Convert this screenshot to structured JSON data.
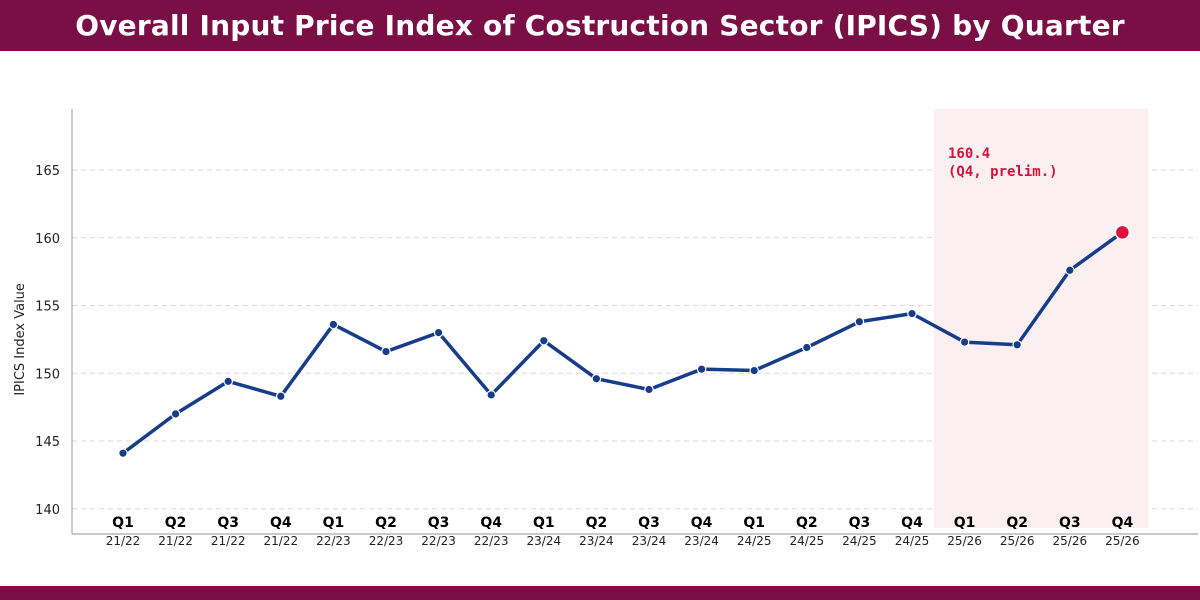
{
  "title": "Overall Input Price Index of Costruction Sector (IPICS) by Quarter",
  "colors": {
    "banner": "#7a0f45",
    "line": "#163c8a",
    "highlight_point": "#dc143c",
    "highlight_band": "#fbeff1",
    "annotation": "#d0143c"
  },
  "chart_data": {
    "type": "line",
    "title": "Overall Input Price Index of Costruction Sector (IPICS) by Quarter",
    "xlabel": "",
    "ylabel": "IPICS Index Value",
    "ylim": [
      139.5,
      169.5
    ],
    "yticks": [
      140,
      145,
      150,
      155,
      160,
      165
    ],
    "grid": "horizontal dashed",
    "categories": [
      {
        "q": "Q1",
        "y": "21/22"
      },
      {
        "q": "Q2",
        "y": "21/22"
      },
      {
        "q": "Q3",
        "y": "21/22"
      },
      {
        "q": "Q4",
        "y": "21/22"
      },
      {
        "q": "Q1",
        "y": "22/23"
      },
      {
        "q": "Q2",
        "y": "22/23"
      },
      {
        "q": "Q3",
        "y": "22/23"
      },
      {
        "q": "Q4",
        "y": "22/23"
      },
      {
        "q": "Q1",
        "y": "23/24"
      },
      {
        "q": "Q2",
        "y": "23/24"
      },
      {
        "q": "Q3",
        "y": "23/24"
      },
      {
        "q": "Q4",
        "y": "23/24"
      },
      {
        "q": "Q1",
        "y": "24/25"
      },
      {
        "q": "Q2",
        "y": "24/25"
      },
      {
        "q": "Q3",
        "y": "24/25"
      },
      {
        "q": "Q4",
        "y": "24/25"
      },
      {
        "q": "Q1",
        "y": "25/26"
      },
      {
        "q": "Q2",
        "y": "25/26"
      },
      {
        "q": "Q3",
        "y": "25/26"
      },
      {
        "q": "Q4",
        "y": "25/26"
      }
    ],
    "series": [
      {
        "values": [
          144.1,
          147.0,
          149.4,
          148.3,
          153.6,
          151.6,
          153.0,
          148.4,
          152.4,
          149.6,
          148.8,
          150.3,
          150.2,
          151.9,
          153.8,
          154.4,
          152.3,
          152.1,
          157.6,
          160.4
        ]
      }
    ],
    "highlight_range": [
      "Q1 25/26",
      "Q4 25/26"
    ],
    "annotation": {
      "index": 19,
      "line1": "160.4",
      "line2": "(Q4, prelim.)"
    }
  }
}
